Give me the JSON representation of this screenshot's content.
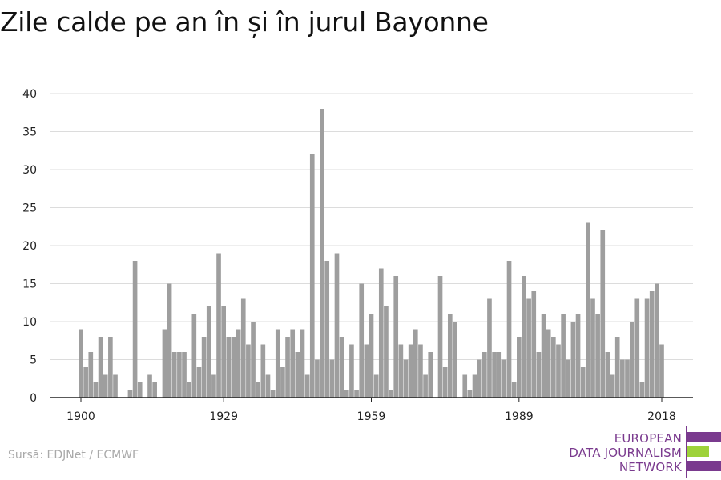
{
  "chart_data": {
    "type": "bar",
    "title": "Zile calde pe an în și în jurul Bayonne",
    "xlabel": "",
    "ylabel": "",
    "x_ticks": [
      "1900",
      "1929",
      "1959",
      "1989",
      "2018"
    ],
    "y_ticks": [
      "0",
      "5",
      "10",
      "15",
      "20",
      "25",
      "30",
      "35",
      "40"
    ],
    "ylim": [
      0,
      40
    ],
    "xlim": [
      1900,
      2018
    ],
    "grid": true,
    "bar_color": "#9e9e9e",
    "x": [
      1900,
      1901,
      1902,
      1903,
      1904,
      1905,
      1906,
      1907,
      1908,
      1909,
      1910,
      1911,
      1912,
      1913,
      1914,
      1915,
      1916,
      1917,
      1918,
      1919,
      1920,
      1921,
      1922,
      1923,
      1924,
      1925,
      1926,
      1927,
      1928,
      1929,
      1930,
      1931,
      1932,
      1933,
      1934,
      1935,
      1936,
      1937,
      1938,
      1939,
      1940,
      1941,
      1942,
      1943,
      1944,
      1945,
      1946,
      1947,
      1948,
      1949,
      1950,
      1951,
      1952,
      1953,
      1954,
      1955,
      1956,
      1957,
      1958,
      1959,
      1960,
      1961,
      1962,
      1963,
      1964,
      1965,
      1966,
      1967,
      1968,
      1969,
      1970,
      1971,
      1972,
      1973,
      1974,
      1975,
      1976,
      1977,
      1978,
      1979,
      1980,
      1981,
      1982,
      1983,
      1984,
      1985,
      1986,
      1987,
      1988,
      1989,
      1990,
      1991,
      1992,
      1993,
      1994,
      1995,
      1996,
      1997,
      1998,
      1999,
      2000,
      2001,
      2002,
      2003,
      2004,
      2005,
      2006,
      2007,
      2008,
      2009,
      2010,
      2011,
      2012,
      2013,
      2014,
      2015,
      2016,
      2017,
      2018
    ],
    "values": [
      9,
      4,
      6,
      2,
      8,
      3,
      8,
      3,
      0,
      0,
      1,
      18,
      2,
      0,
      3,
      2,
      0,
      9,
      15,
      6,
      6,
      6,
      2,
      11,
      4,
      8,
      12,
      3,
      19,
      12,
      8,
      8,
      9,
      13,
      7,
      10,
      2,
      7,
      3,
      1,
      9,
      4,
      8,
      9,
      6,
      9,
      3,
      32,
      5,
      38,
      18,
      5,
      19,
      8,
      1,
      7,
      1,
      15,
      7,
      11,
      3,
      17,
      12,
      1,
      16,
      7,
      5,
      7,
      9,
      7,
      3,
      6,
      0,
      16,
      4,
      11,
      10,
      0,
      3,
      1,
      3,
      5,
      6,
      13,
      6,
      6,
      5,
      18,
      2,
      8,
      16,
      13,
      14,
      6,
      11,
      9,
      8,
      7,
      11,
      5,
      10,
      11,
      4,
      23,
      13,
      11,
      22,
      6,
      3,
      8,
      5,
      5,
      10,
      13,
      2,
      13,
      14,
      15,
      7
    ]
  },
  "source_text": "Sursă: EDJNet / ECMWF",
  "logo": {
    "lines": [
      "EUROPEAN",
      "DATA JOURNALISM",
      "NETWORK"
    ],
    "colors": {
      "text": "#7a3a8e",
      "bar_purple": "#7a3a8e",
      "bar_green": "#9ed23a"
    }
  }
}
